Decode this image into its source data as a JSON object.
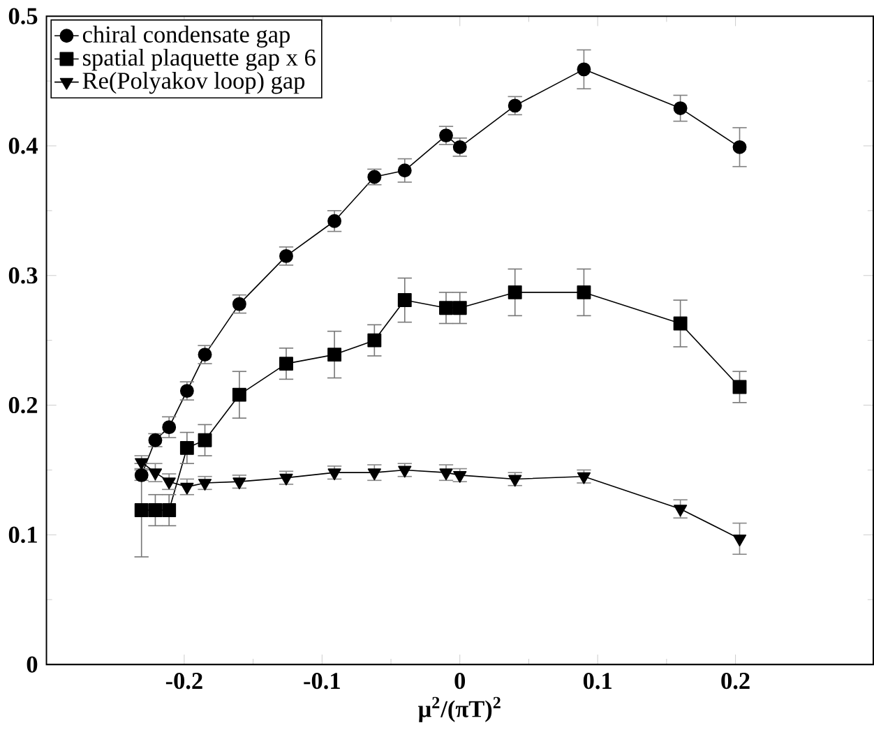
{
  "chart_data": {
    "type": "line",
    "xlabel": "μ$^{2}$/(πT)$^{2}$",
    "x": [
      -0.231,
      -0.221,
      -0.211,
      -0.198,
      -0.185,
      -0.16,
      -0.126,
      -0.091,
      -0.062,
      -0.04,
      -0.01,
      0,
      0.04,
      0.09,
      0.16,
      0.203
    ],
    "series": [
      {
        "name": "chiral condensate gap",
        "color": "#000000",
        "marker": "circle",
        "values": [
          0.146,
          0.173,
          0.183,
          0.211,
          0.239,
          0.278,
          0.315,
          0.342,
          0.376,
          0.381,
          0.408,
          0.399,
          0.431,
          0.459,
          0.429,
          0.399
        ],
        "errors": [
          0.004,
          0.005,
          0.008,
          0.007,
          0.007,
          0.007,
          0.007,
          0.008,
          0.006,
          0.009,
          0.007,
          0.007,
          0.007,
          0.015,
          0.01,
          0.015
        ]
      },
      {
        "name": "spatial plaquette gap  x  6",
        "color": "#000000",
        "marker": "square",
        "values": [
          0.119,
          0.119,
          0.119,
          0.167,
          0.173,
          0.208,
          0.232,
          0.239,
          0.25,
          0.281,
          0.275,
          0.275,
          0.287,
          0.287,
          0.263,
          0.214
        ],
        "errors": [
          0.036,
          0.012,
          0.012,
          0.012,
          0.012,
          0.018,
          0.012,
          0.018,
          0.012,
          0.017,
          0.012,
          0.012,
          0.018,
          0.018,
          0.018,
          0.012
        ]
      },
      {
        "name": "Re(Polyakov loop) gap",
        "color": "#000000",
        "marker": "triangle-down",
        "values": [
          0.156,
          0.148,
          0.141,
          0.137,
          0.14,
          0.141,
          0.144,
          0.148,
          0.148,
          0.15,
          0.148,
          0.146,
          0.143,
          0.145,
          0.12,
          0.097
        ],
        "errors": [
          0.005,
          0.007,
          0.006,
          0.006,
          0.005,
          0.005,
          0.005,
          0.005,
          0.006,
          0.005,
          0.006,
          0.005,
          0.005,
          0.005,
          0.007,
          0.012
        ]
      }
    ],
    "xlim": [
      -0.3,
      0.3
    ],
    "ylim": [
      0,
      0.5
    ],
    "xticks": [
      -0.2,
      -0.1,
      0,
      0.1,
      0.2
    ],
    "yticks": [
      0,
      0.1,
      0.2,
      0.3,
      0.4,
      0.5
    ],
    "grid": false,
    "legend": "top left",
    "line_style": "solid"
  }
}
